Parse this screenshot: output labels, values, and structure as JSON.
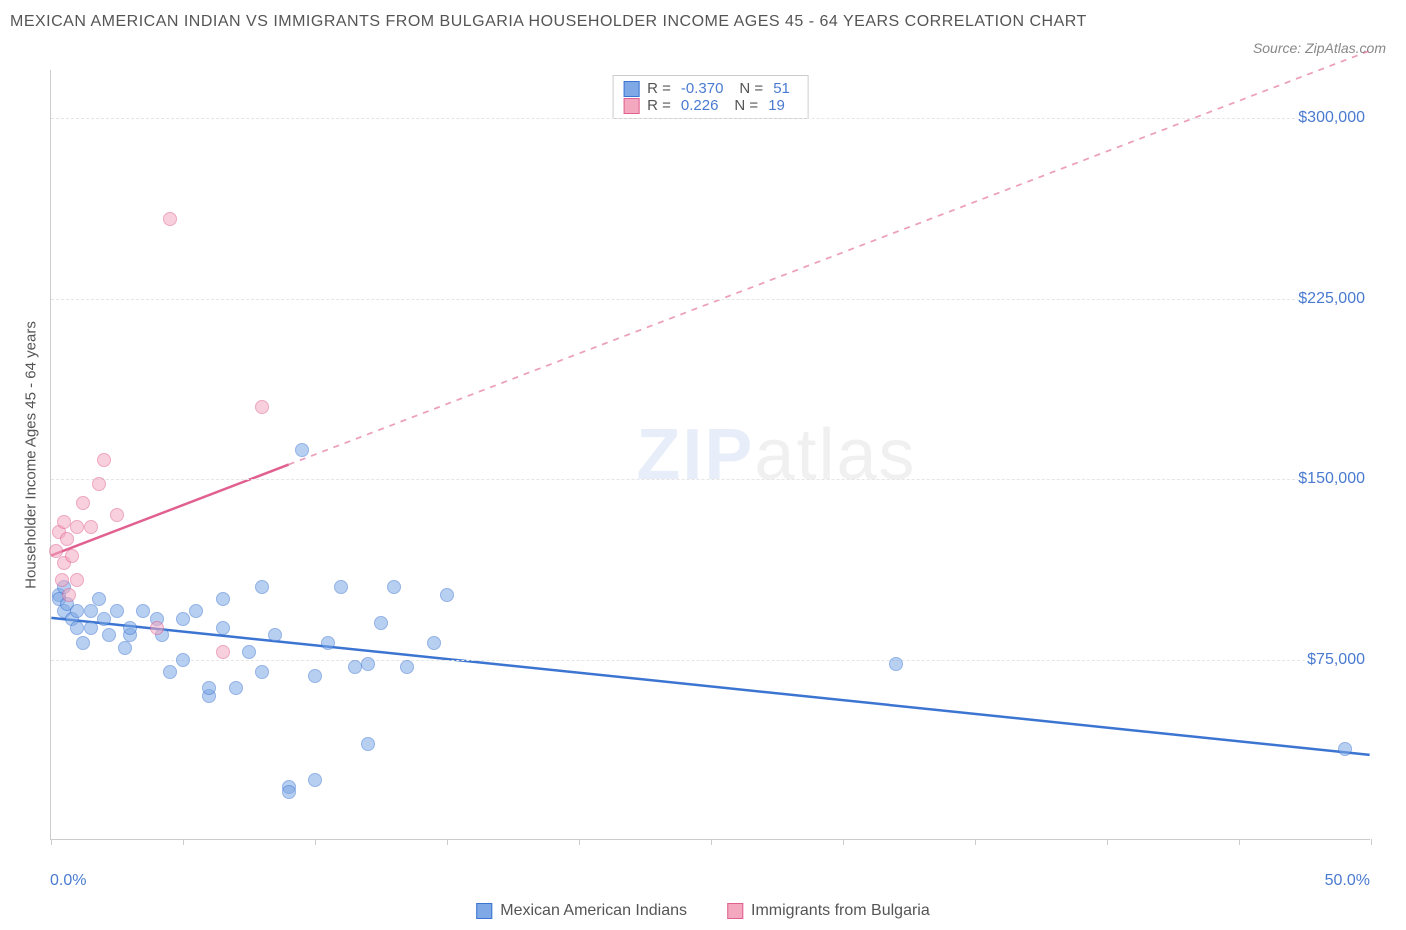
{
  "title": "MEXICAN AMERICAN INDIAN VS IMMIGRANTS FROM BULGARIA HOUSEHOLDER INCOME AGES 45 - 64 YEARS CORRELATION CHART",
  "source_label": "Source: ZipAtlas.com",
  "y_axis_label": "Householder Income Ages 45 - 64 years",
  "watermark": {
    "part1": "ZIP",
    "part2": "atlas"
  },
  "chart": {
    "type": "scatter",
    "background_color": "#ffffff",
    "grid_color": "#e5e5e5",
    "axis_color": "#cccccc",
    "label_color": "#555555",
    "value_color": "#4a7bd0",
    "xlim": [
      0,
      50
    ],
    "ylim": [
      0,
      320000
    ],
    "x_ticks": [
      0,
      5,
      10,
      15,
      20,
      25,
      30,
      35,
      40,
      45,
      50
    ],
    "x_tick_labels": {
      "start": "0.0%",
      "end": "50.0%"
    },
    "y_ticks": [
      75000,
      150000,
      225000,
      300000
    ],
    "y_tick_labels": [
      "$75,000",
      "$150,000",
      "$225,000",
      "$300,000"
    ],
    "point_radius": 7,
    "point_opacity": 0.55,
    "line_width": 2.5,
    "series": [
      {
        "key": "s1",
        "label": "Mexican American Indians",
        "color_fill": "#7ea8e6",
        "color_stroke": "#3b74d1",
        "r_value": "-0.370",
        "n_value": "51",
        "trend": {
          "x1": 0,
          "y1": 92000,
          "x2": 50,
          "y2": 35000,
          "dash_after_x": 50
        },
        "points": [
          [
            0.3,
            102000
          ],
          [
            0.3,
            100000
          ],
          [
            0.5,
            105000
          ],
          [
            0.5,
            95000
          ],
          [
            0.6,
            98000
          ],
          [
            0.8,
            92000
          ],
          [
            1.0,
            95000
          ],
          [
            1.0,
            88000
          ],
          [
            1.2,
            82000
          ],
          [
            1.5,
            95000
          ],
          [
            1.5,
            88000
          ],
          [
            1.8,
            100000
          ],
          [
            2.0,
            92000
          ],
          [
            2.2,
            85000
          ],
          [
            2.5,
            95000
          ],
          [
            2.8,
            80000
          ],
          [
            3.0,
            85000
          ],
          [
            3.0,
            88000
          ],
          [
            3.5,
            95000
          ],
          [
            4.0,
            92000
          ],
          [
            4.2,
            85000
          ],
          [
            4.5,
            70000
          ],
          [
            5.0,
            92000
          ],
          [
            5.0,
            75000
          ],
          [
            5.5,
            95000
          ],
          [
            6.0,
            60000
          ],
          [
            6.0,
            63000
          ],
          [
            6.5,
            100000
          ],
          [
            6.5,
            88000
          ],
          [
            7.0,
            63000
          ],
          [
            7.5,
            78000
          ],
          [
            8.0,
            105000
          ],
          [
            8.0,
            70000
          ],
          [
            8.5,
            85000
          ],
          [
            9.0,
            22000
          ],
          [
            9.0,
            20000
          ],
          [
            9.5,
            162000
          ],
          [
            10.0,
            68000
          ],
          [
            10.0,
            25000
          ],
          [
            10.5,
            82000
          ],
          [
            11.0,
            105000
          ],
          [
            11.5,
            72000
          ],
          [
            12.0,
            40000
          ],
          [
            12.0,
            73000
          ],
          [
            12.5,
            90000
          ],
          [
            13.0,
            105000
          ],
          [
            13.5,
            72000
          ],
          [
            14.5,
            82000
          ],
          [
            15.0,
            102000
          ],
          [
            32.0,
            73000
          ],
          [
            49.0,
            38000
          ]
        ]
      },
      {
        "key": "s2",
        "label": "Immigrants from Bulgaria",
        "color_fill": "#f4a8c0",
        "color_stroke": "#e06090",
        "r_value": "0.226",
        "n_value": "19",
        "trend": {
          "x1": 0,
          "y1": 118000,
          "x2": 50,
          "y2": 328000,
          "dash_after_x": 9
        },
        "points": [
          [
            0.2,
            120000
          ],
          [
            0.3,
            128000
          ],
          [
            0.4,
            108000
          ],
          [
            0.5,
            132000
          ],
          [
            0.5,
            115000
          ],
          [
            0.6,
            125000
          ],
          [
            0.7,
            102000
          ],
          [
            0.8,
            118000
          ],
          [
            1.0,
            130000
          ],
          [
            1.0,
            108000
          ],
          [
            1.2,
            140000
          ],
          [
            1.5,
            130000
          ],
          [
            1.8,
            148000
          ],
          [
            2.0,
            158000
          ],
          [
            2.5,
            135000
          ],
          [
            4.0,
            88000
          ],
          [
            4.5,
            258000
          ],
          [
            6.5,
            78000
          ],
          [
            8.0,
            180000
          ]
        ]
      }
    ]
  }
}
